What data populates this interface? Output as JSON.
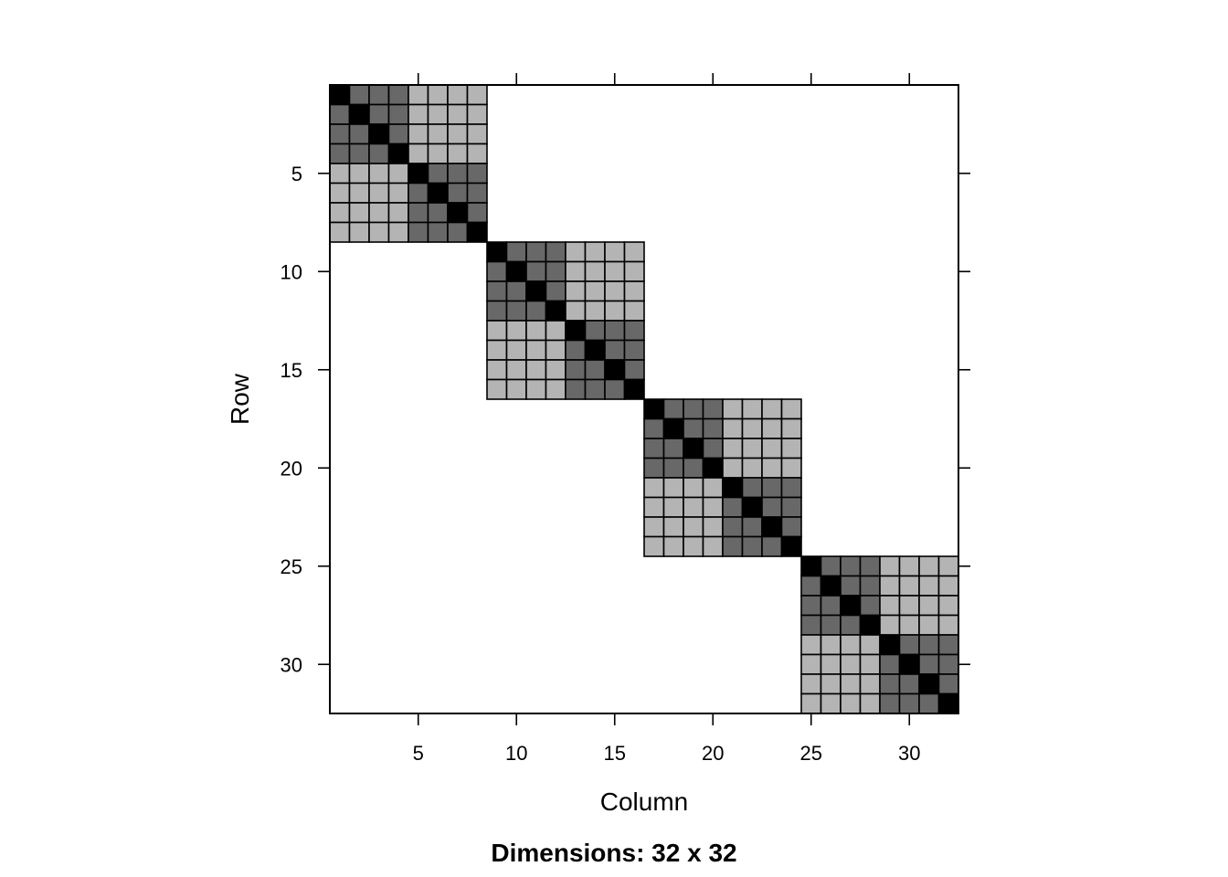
{
  "chart_data": {
    "type": "heatmap",
    "title": "",
    "xlabel": "Column",
    "ylabel": "Row",
    "caption": "Dimensions: 32 x 32",
    "nrow": 32,
    "ncol": 32,
    "xlim": [
      0.5,
      32.5
    ],
    "ylim": [
      32.5,
      0.5
    ],
    "x_ticks": [
      5,
      10,
      15,
      20,
      25,
      30
    ],
    "y_ticks": [
      5,
      10,
      15,
      20,
      25,
      30
    ],
    "grid": false,
    "blocks": [
      {
        "start": 1,
        "end": 8
      },
      {
        "start": 9,
        "end": 16
      },
      {
        "start": 17,
        "end": 24
      },
      {
        "start": 25,
        "end": 32
      }
    ],
    "sub_block_size": 4,
    "levels": {
      "diagonal": 3,
      "same_sub_block": 2,
      "same_block": 1,
      "zero": 0
    },
    "colors": {
      "diagonal": "#000000",
      "same_sub_block": "#686868",
      "same_block": "#b4b4b4",
      "zero": "#ffffff",
      "cell_border": "#000000"
    }
  }
}
